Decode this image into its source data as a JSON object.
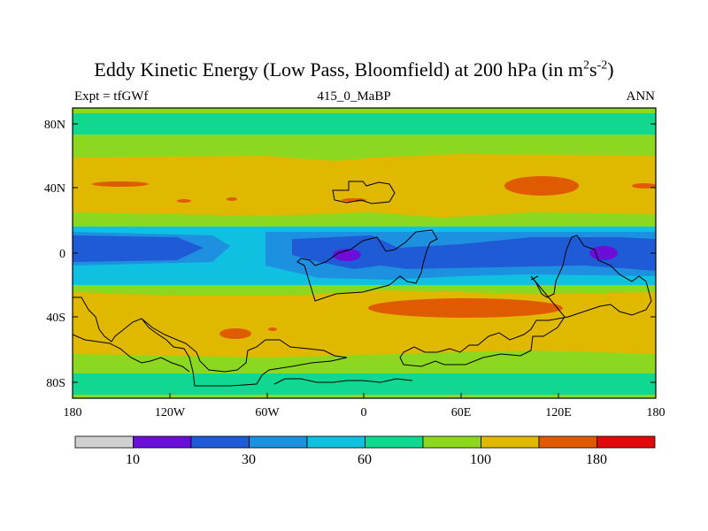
{
  "title": {
    "main": "Eddy Kinetic Energy (Low Pass, Bloomfield) at 200 hPa (in m",
    "sup1": "2",
    "mid": "s",
    "sup2": "-2",
    "close": ")"
  },
  "subtitle": {
    "left": "Expt = tfGWf",
    "center": "415_0_MaBP",
    "right": "ANN"
  },
  "axes": {
    "y_ticks": [
      "80N",
      "40N",
      "0",
      "40S",
      "80S"
    ],
    "x_ticks": [
      "180",
      "120W",
      "60W",
      "0",
      "60E",
      "120E",
      "180"
    ]
  },
  "colorbar": {
    "colors": [
      "#d0d0d0",
      "#6a0fd8",
      "#1f5bd6",
      "#1e90e0",
      "#10c0e0",
      "#10d890",
      "#8cd820",
      "#e0b800",
      "#e05a00",
      "#e00a0a"
    ],
    "labels": [
      "10",
      "30",
      "60",
      "100",
      "180"
    ]
  },
  "map_colors": {
    "outer_green": "#8cd820",
    "teal": "#10d890",
    "yellow": "#e0b800",
    "orange": "#e05a00",
    "cyan": "#10c0e0",
    "light_blue": "#1e90e0",
    "dark_blue": "#1f5bd6",
    "purple": "#6a0fd8",
    "coast": "#000000"
  }
}
